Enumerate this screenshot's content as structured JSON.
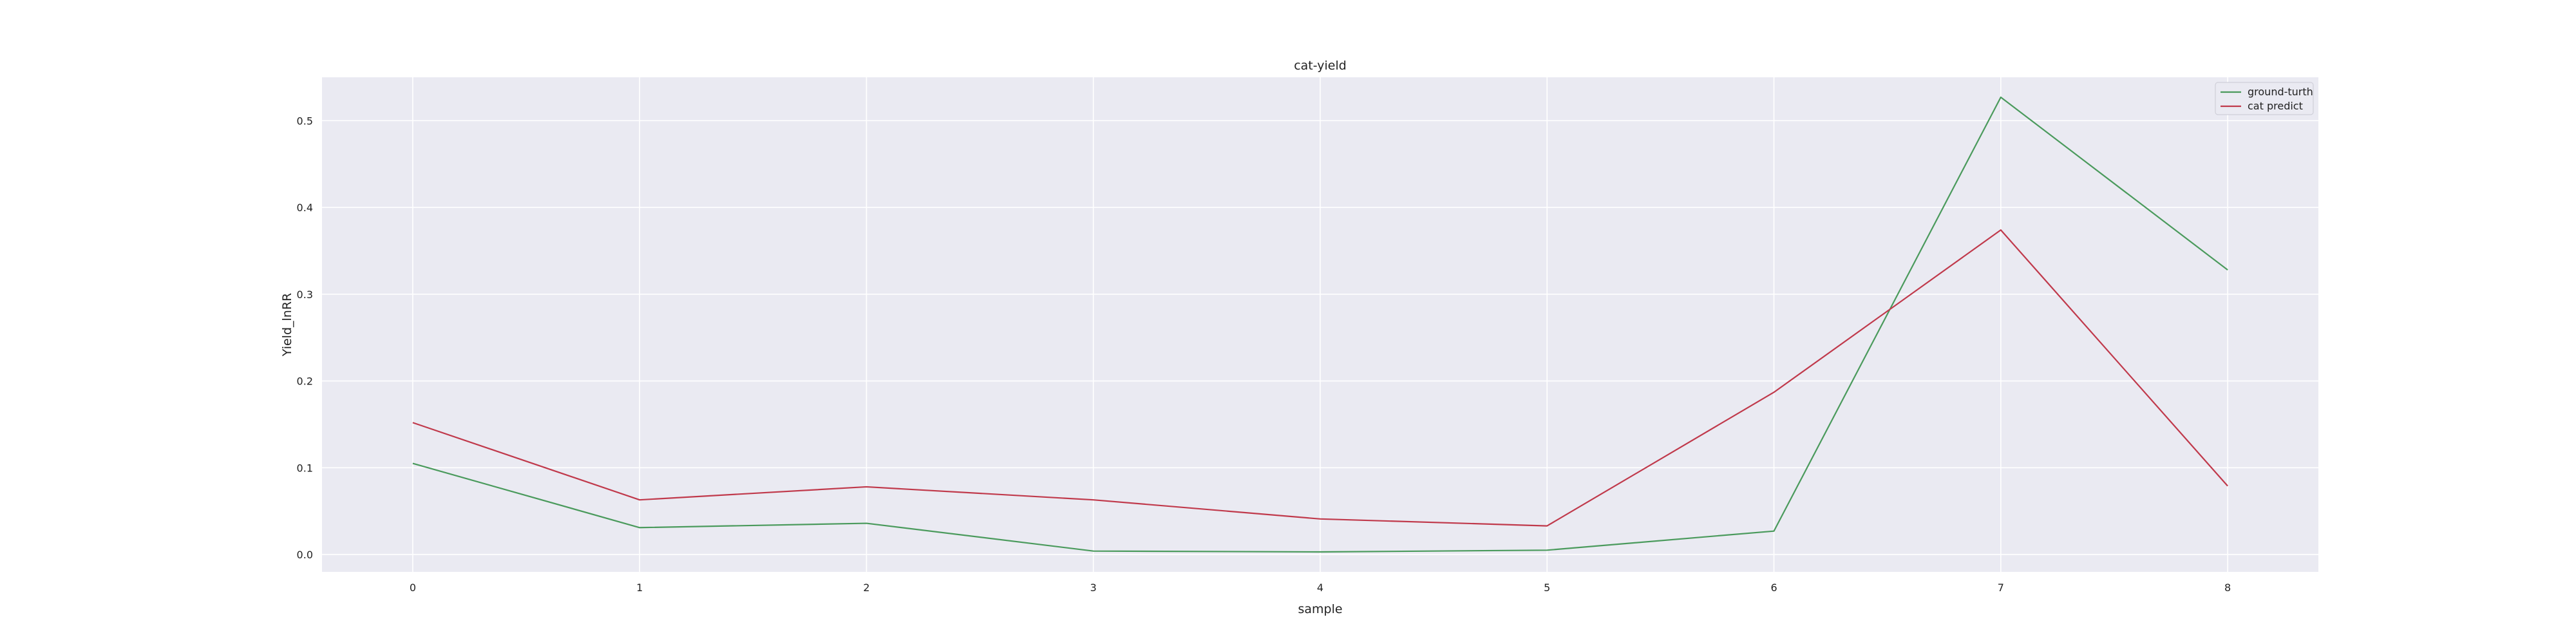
{
  "chart_data": {
    "type": "line",
    "title": "cat-yield",
    "xlabel": "sample",
    "ylabel": "Yield_lnRR",
    "x": [
      0,
      1,
      2,
      3,
      4,
      5,
      6,
      7,
      8
    ],
    "xlim": [
      -0.4,
      8.4
    ],
    "ylim": [
      -0.02,
      0.55
    ],
    "xticks": [
      "0",
      "1",
      "2",
      "3",
      "4",
      "5",
      "6",
      "7",
      "8"
    ],
    "yticks": [
      "0.0",
      "0.1",
      "0.2",
      "0.3",
      "0.4",
      "0.5"
    ],
    "grid": true,
    "legend_position": "top-right",
    "series": [
      {
        "name": "ground-turth",
        "color": "#4a9a5c",
        "values": [
          0.105,
          0.031,
          0.036,
          0.004,
          0.003,
          0.005,
          0.027,
          0.527,
          0.328
        ]
      },
      {
        "name": "cat predict",
        "color": "#c0394b",
        "values": [
          0.152,
          0.063,
          0.078,
          0.063,
          0.041,
          0.033,
          0.187,
          0.374,
          0.079
        ]
      }
    ],
    "background_color": "#eaeaf2",
    "grid_color": "#ffffff"
  }
}
